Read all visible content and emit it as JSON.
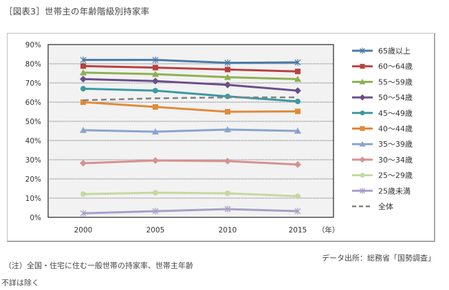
{
  "header": {
    "title": "［図表3］世帯主の年齢階級別持家率"
  },
  "footer": {
    "note_line1": "（注）全国・住宅に住む一般世帯の持家率、世帯主年齢",
    "note_line2": "不詳は除く",
    "source": "データ出所：総務省「国勢調査」"
  },
  "chart_data": {
    "type": "line",
    "title": "［図表3］世帯主の年齢階級別持家率",
    "xlabel": "（年）",
    "ylabel": "",
    "categories": [
      "2000",
      "2005",
      "2010",
      "2015"
    ],
    "ylim": [
      0,
      90
    ],
    "yticks": [
      "0%",
      "10%",
      "20%",
      "30%",
      "40%",
      "50%",
      "60%",
      "70%",
      "80%",
      "90%"
    ],
    "grid": true,
    "legend_position": "right",
    "series": [
      {
        "name": "65歳以上",
        "color": "#4a7aa8",
        "marker": "star",
        "values": [
          82.0,
          82.0,
          80.5,
          80.7
        ]
      },
      {
        "name": "60〜64歳",
        "color": "#b84040",
        "marker": "square",
        "values": [
          78.8,
          78.0,
          77.0,
          76.0
        ]
      },
      {
        "name": "55〜59歳",
        "color": "#8fb050",
        "marker": "triangle",
        "values": [
          75.4,
          74.6,
          73.0,
          72.0
        ]
      },
      {
        "name": "50〜54歳",
        "color": "#6a4e8a",
        "marker": "diamond",
        "values": [
          72.0,
          71.0,
          69.0,
          66.0
        ]
      },
      {
        "name": "45〜49歳",
        "color": "#3a9aa0",
        "marker": "circle",
        "values": [
          67.0,
          66.0,
          63.0,
          60.4
        ]
      },
      {
        "name": "40〜44歳",
        "color": "#e08a3a",
        "marker": "square",
        "values": [
          60.0,
          57.5,
          55.0,
          55.2
        ]
      },
      {
        "name": "35〜39歳",
        "color": "#8aa4cc",
        "marker": "triangle",
        "values": [
          45.4,
          44.6,
          45.7,
          45.0
        ]
      },
      {
        "name": "30〜34歳",
        "color": "#d89090",
        "marker": "diamond",
        "values": [
          28.2,
          29.6,
          29.3,
          27.5
        ]
      },
      {
        "name": "25〜29歳",
        "color": "#c4d8a0",
        "marker": "circle",
        "values": [
          12.1,
          12.8,
          12.5,
          11.0
        ]
      },
      {
        "name": "25歳未満",
        "color": "#a89ec8",
        "marker": "star",
        "values": [
          2.1,
          3.2,
          4.3,
          3.2
        ]
      },
      {
        "name": "全体",
        "color": "#808080",
        "marker": "none",
        "dashed": true,
        "values": [
          61.0,
          62.0,
          62.5,
          62.5
        ]
      }
    ]
  }
}
